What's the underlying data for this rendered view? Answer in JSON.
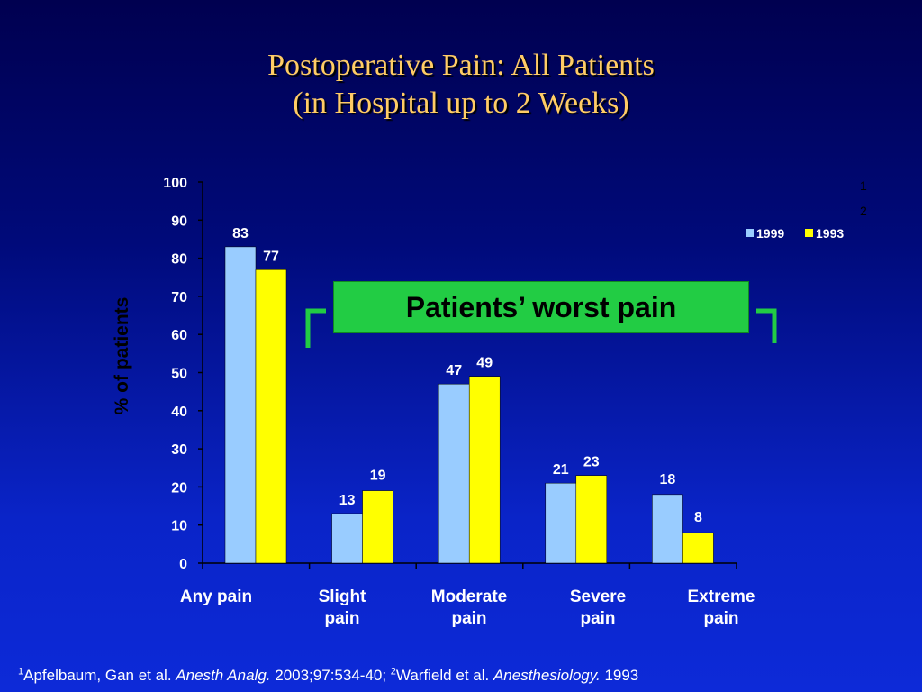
{
  "title": {
    "line1": "Postoperative Pain: All Patients",
    "line2": "(in Hospital up to 2 Weeks)"
  },
  "callout": {
    "text": "Patients’ worst pain"
  },
  "corner_marks": [
    "1",
    "2"
  ],
  "footnote": {
    "ref1_sup": "1",
    "ref1_authors": "Apfelbaum, Gan et al. ",
    "ref1_journal": "Anesth Analg.",
    "ref1_details": " 2003;97:534-40; ",
    "ref2_sup": "2",
    "ref2_authors": "Warfield et al. ",
    "ref2_journal": "Anesthesiology.",
    "ref2_details": " 1993"
  },
  "colors": {
    "title": "#ffcc66",
    "series_1999": "#99ccff",
    "series_1993": "#ffff00",
    "callout_bg": "#22cc44",
    "axis": "#000000"
  },
  "chart_data": {
    "type": "bar",
    "title": "Postoperative Pain: All Patients (in Hospital up to 2 Weeks)",
    "xlabel": "",
    "ylabel": "% of patients",
    "ylim": [
      0,
      100
    ],
    "yticks": [
      0,
      10,
      20,
      30,
      40,
      50,
      60,
      70,
      80,
      90,
      100
    ],
    "categories": [
      [
        "Any pain"
      ],
      [
        "Slight",
        "pain"
      ],
      [
        "Moderate",
        "pain"
      ],
      [
        "Severe",
        "pain"
      ],
      [
        "Extreme",
        "pain"
      ]
    ],
    "series": [
      {
        "name": "1999",
        "color": "#99ccff",
        "values": [
          83,
          13,
          47,
          21,
          18
        ]
      },
      {
        "name": "1993",
        "color": "#ffff00",
        "values": [
          77,
          19,
          49,
          23,
          8
        ]
      }
    ],
    "legend": "top-right",
    "grid": false
  }
}
